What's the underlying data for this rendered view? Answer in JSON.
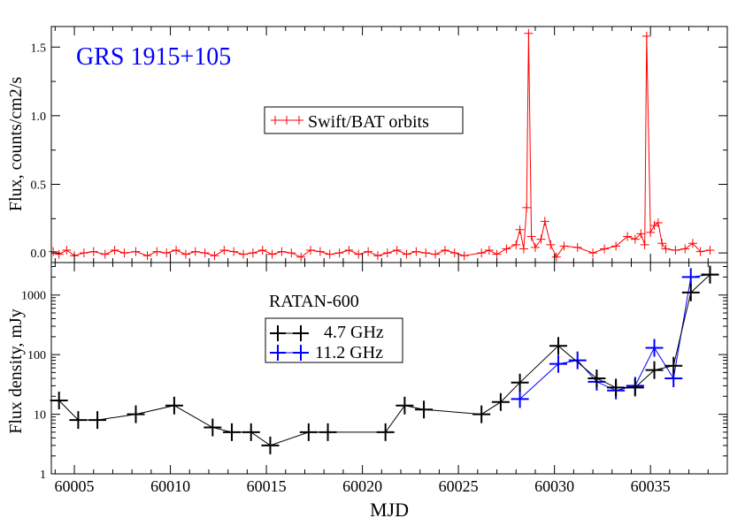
{
  "colors": {
    "bat": "#ff0000",
    "ghz47": "#000000",
    "ghz112": "#0000ff",
    "title": "#0000ff"
  },
  "chart_data": [
    {
      "type": "line",
      "title": "GRS 1915+105",
      "ylabel": "Flux, counts/cm2/s",
      "xlabel": "",
      "xlim": [
        60003.8,
        60039.0
      ],
      "ylim": [
        -0.07,
        1.65
      ],
      "yticks": [
        0.0,
        0.5,
        1.0,
        1.5
      ],
      "ytick_labels": [
        "0.0",
        "0.5",
        "1.0",
        "1.5"
      ],
      "legend_position": "center",
      "series": [
        {
          "name": "Swift/BAT orbits",
          "marker": "plus",
          "x": [
            60003.9,
            60004.2,
            60004.6,
            60005.0,
            60005.5,
            60006.0,
            60006.6,
            60007.1,
            60007.6,
            60008.2,
            60008.8,
            60009.3,
            60009.8,
            60010.3,
            60010.8,
            60011.3,
            60011.8,
            60012.3,
            60012.8,
            60013.3,
            60013.8,
            60014.3,
            60014.8,
            60015.3,
            60015.8,
            60016.3,
            60016.8,
            60017.3,
            60017.8,
            60018.3,
            60018.8,
            60019.3,
            60019.8,
            60020.3,
            60020.8,
            60021.3,
            60021.8,
            60022.3,
            60022.8,
            60023.3,
            60023.8,
            60024.3,
            60024.8,
            60025.3,
            60026.2,
            60026.6,
            60027.0,
            60027.5,
            60028.0,
            60028.2,
            60028.4,
            60028.55,
            60028.65,
            60028.8,
            60029.0,
            60029.3,
            60029.5,
            60029.8,
            60030.1,
            60030.5,
            60031.2,
            60032.0,
            60032.6,
            60033.2,
            60033.8,
            60034.2,
            60034.5,
            60034.7,
            60034.8,
            60035.0,
            60035.2,
            60035.4,
            60035.6,
            60035.8,
            60036.3,
            60036.8,
            60037.2,
            60037.6,
            60038.1
          ],
          "y": [
            0.01,
            -0.01,
            0.02,
            -0.02,
            0.0,
            0.01,
            -0.01,
            0.02,
            0.0,
            0.01,
            -0.02,
            0.01,
            0.0,
            0.02,
            -0.01,
            0.01,
            0.0,
            -0.02,
            0.02,
            0.01,
            -0.01,
            0.0,
            0.02,
            -0.01,
            0.01,
            0.0,
            -0.03,
            0.02,
            0.01,
            -0.01,
            0.0,
            0.02,
            -0.01,
            0.01,
            -0.02,
            0.0,
            0.02,
            -0.01,
            0.01,
            0.0,
            -0.01,
            0.02,
            0.0,
            -0.02,
            0.0,
            0.02,
            -0.01,
            0.03,
            0.06,
            0.17,
            0.03,
            0.33,
            1.6,
            0.12,
            0.04,
            0.1,
            0.23,
            0.06,
            -0.03,
            0.05,
            0.04,
            0.0,
            0.03,
            0.05,
            0.12,
            0.1,
            0.14,
            0.06,
            1.58,
            0.15,
            0.2,
            0.22,
            0.07,
            0.03,
            0.02,
            0.03,
            0.07,
            0.01,
            0.02
          ]
        }
      ]
    },
    {
      "type": "line",
      "title": "RATAN-600",
      "xlabel": "MJD",
      "ylabel": "Flux density, mJy",
      "yscale": "log",
      "xlim": [
        60003.8,
        60039.0
      ],
      "ylim": [
        1,
        3500
      ],
      "xticks": [
        60005,
        60010,
        60015,
        60020,
        60025,
        60030,
        60035
      ],
      "xtick_labels": [
        "60005",
        "60010",
        "60015",
        "60020",
        "60025",
        "60030",
        "60035"
      ],
      "yticks": [
        1,
        10,
        100,
        1000
      ],
      "ytick_labels": [
        "1",
        "10",
        "100",
        "1000"
      ],
      "legend_position": "center-left",
      "series": [
        {
          "name": "4.7 GHz",
          "marker": "plus",
          "x": [
            60004.2,
            60005.2,
            60006.2,
            60008.2,
            60010.2,
            60012.2,
            60013.2,
            60014.2,
            60015.2,
            60017.2,
            60018.2,
            60021.2,
            60022.2,
            60023.2,
            60026.2,
            60027.2,
            60028.2,
            60030.2,
            60032.2,
            60033.2,
            60034.2,
            60035.2,
            60036.2,
            60037.1,
            60038.1
          ],
          "y": [
            17,
            8,
            8,
            10,
            14,
            6,
            5,
            5,
            3,
            5,
            5,
            5,
            14,
            12,
            10,
            16,
            34,
            140,
            40,
            28,
            28,
            55,
            65,
            1100,
            2200
          ]
        },
        {
          "name": "11.2 GHz",
          "marker": "plus",
          "x": [
            60028.2,
            60030.2,
            60031.2,
            60032.2,
            60033.2,
            60034.2,
            60035.2,
            60036.2,
            60037.1,
            60038.1
          ],
          "y": [
            18,
            70,
            80,
            35,
            25,
            30,
            130,
            40,
            2000,
            2200
          ]
        }
      ]
    }
  ]
}
